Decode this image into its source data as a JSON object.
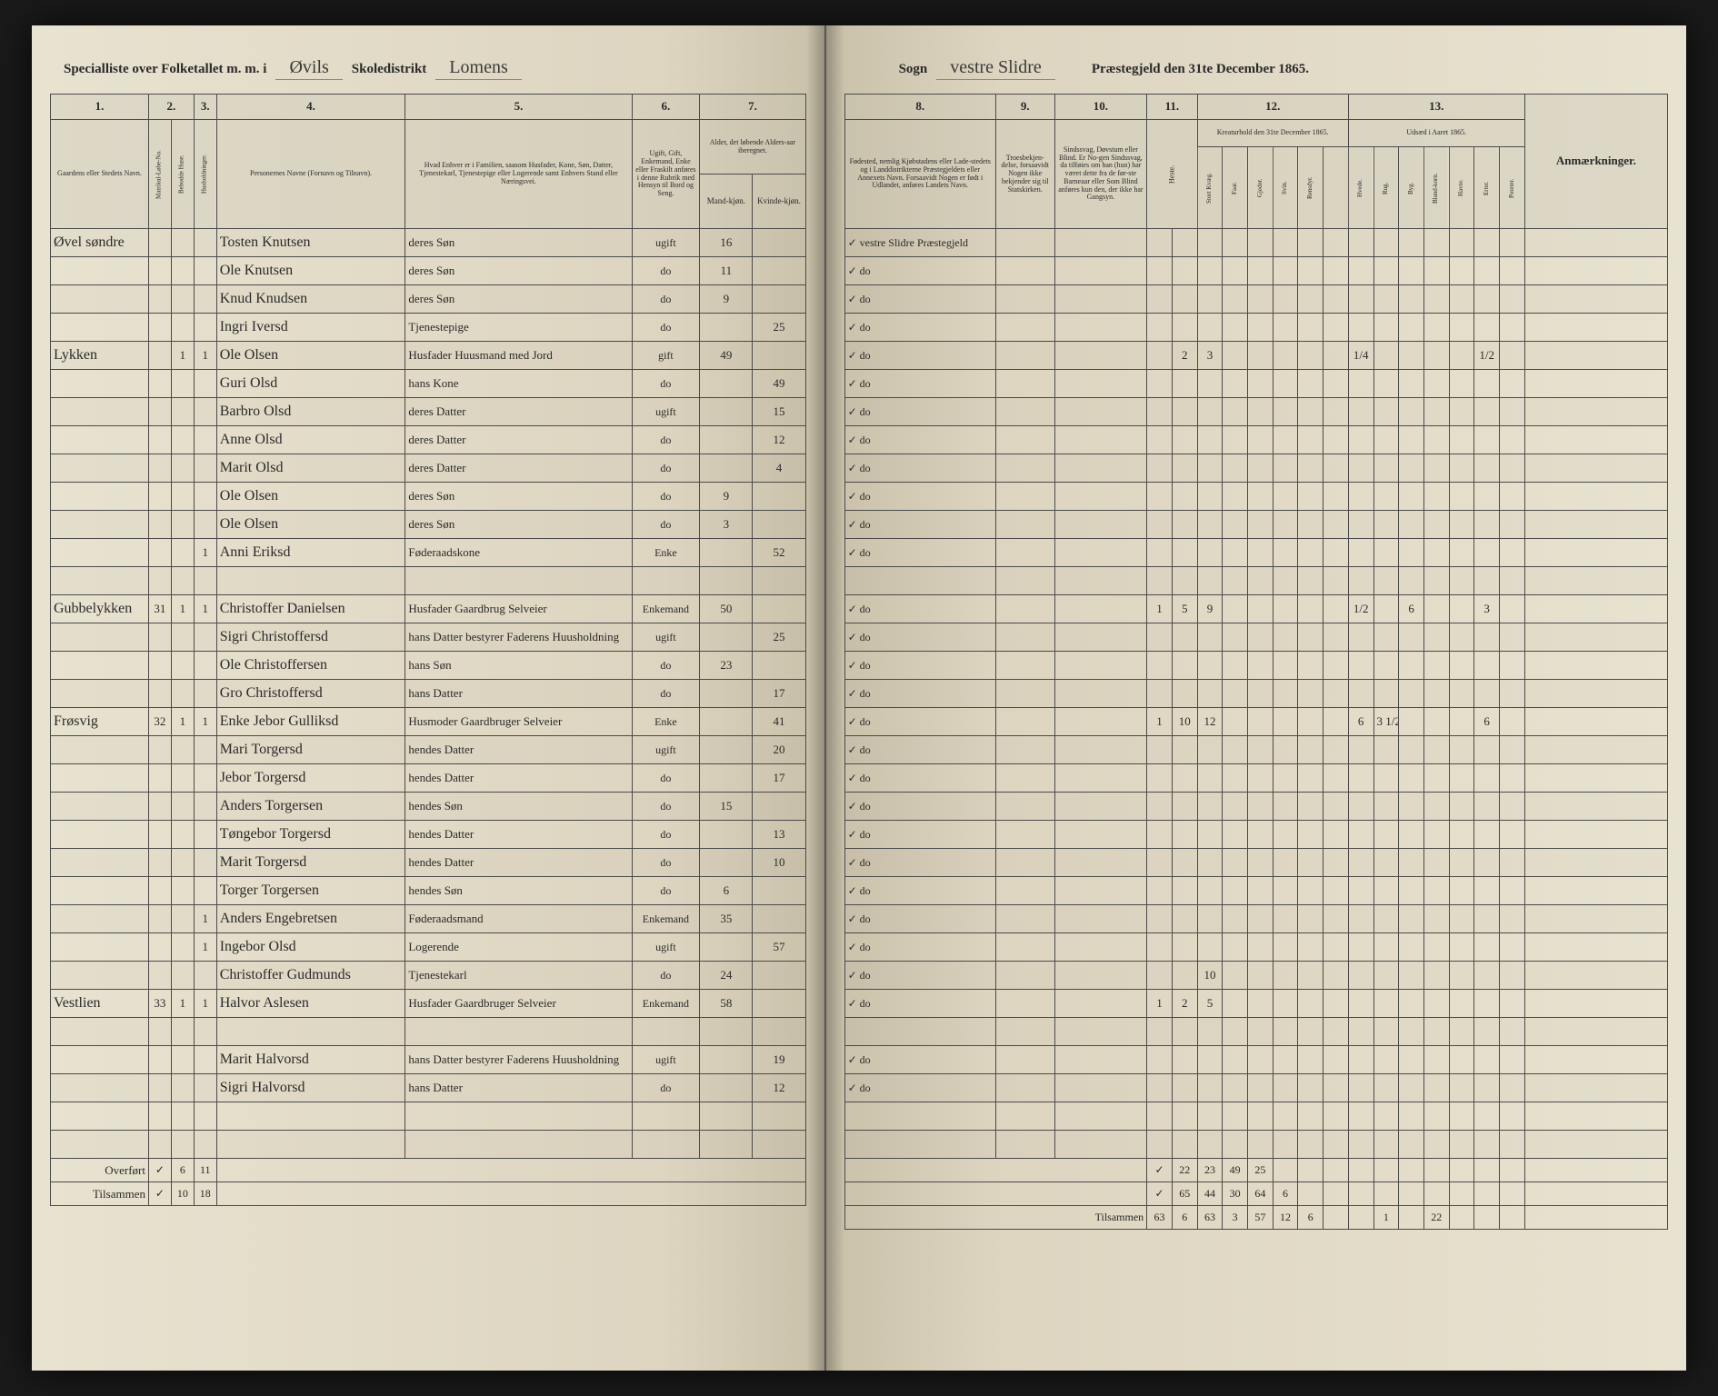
{
  "header": {
    "left_printed_1": "Specialliste over Folketallet m. m. i",
    "left_written_1": "Øvils",
    "left_printed_2": "Skoledistrikt",
    "left_written_2": "Lomens",
    "right_printed_1": "Sogn",
    "right_written_1": "vestre Slidre",
    "right_printed_2": "Præstegjeld den 31te December 1865."
  },
  "left_columns": {
    "c1": "1.",
    "c2": "2.",
    "c3": "3.",
    "c4": "4.",
    "c5": "5.",
    "c6": "6.",
    "c7": "7.",
    "d1": "Gaardens eller Stedets Navn.",
    "d2a": "Matrikul-Løbe-No.",
    "d2b": "Bebodde Huse.",
    "d2c": "Husholdninger.",
    "d4": "Personernes Navne (Fornavn og Tilnavn).",
    "d5": "Hvad Enhver er i Familien, saasom Husfader, Kone, Søn, Datter, Tjenestekarl, Tjenestepige eller Logerende samt Enhvers Stand eller Næringsvei.",
    "d6": "Ugift, Gift, Enkemand, Enke eller Fraskilt anføres i denne Rubrik med Hensyn til Bord og Seng.",
    "d7": "Alder, det løbende Alders-aar iberegnet.",
    "d7a": "Mand-kjøn.",
    "d7b": "Kvinde-kjøn."
  },
  "right_columns": {
    "c8": "8.",
    "c9": "9.",
    "c10": "10.",
    "c11": "11.",
    "c12": "12.",
    "c13": "13.",
    "d8": "Fødested, nemlig Kjøbstadens eller Lade-stedets og i Landdistrikterne Præstegjeldets eller Annexets Navn. Forsaavidt Nogen er født i Udlandet, anføres Landets Navn.",
    "d9": "Troesbekjen-delse, forsaavidt Nogen ikke bekjender sig til Statskirken.",
    "d10": "Sindssvag, Døvstum eller Blind. Er No-gen Sindssvag, da tilføies om han (hun) har været dette fra de før-ste Barneaar eller Som Blind anføres kun den, der ikke har Gangsyn.",
    "d11": "Heste.",
    "d12": "Kreaturhold den 31te December 1865.",
    "d12a": "Stort Kvæg.",
    "d12b": "Faar.",
    "d12c": "Gjeder.",
    "d12d": "Svin.",
    "d12e": "Rensdyr.",
    "d13": "Udsæd i Aaret 1865.",
    "d13a": "Hvede.",
    "d13b": "Rug.",
    "d13c": "Byg.",
    "d13d": "Bland-korn.",
    "d13e": "Havre.",
    "d13f": "Erter.",
    "d13g": "Poteter.",
    "d14": "Anmærkninger."
  },
  "rows": [
    {
      "place": "Øvel søndre",
      "mn": "",
      "h": "",
      "hh": "",
      "name": "Tosten Knutsen",
      "rel": "deres Søn",
      "civ": "ugift",
      "m": "16",
      "f": "",
      "birth": "vestre Slidre Præstegjeld",
      "rc": [
        "",
        "",
        "",
        "",
        "",
        "",
        "",
        "",
        "",
        "",
        "",
        "",
        "",
        ""
      ]
    },
    {
      "place": "",
      "mn": "",
      "h": "",
      "hh": "",
      "name": "Ole Knutsen",
      "rel": "deres Søn",
      "civ": "do",
      "m": "11",
      "f": "",
      "birth": "do",
      "rc": [
        "",
        "",
        "",
        "",
        "",
        "",
        "",
        "",
        "",
        "",
        "",
        "",
        "",
        ""
      ]
    },
    {
      "place": "",
      "mn": "",
      "h": "",
      "hh": "",
      "name": "Knud Knudsen",
      "rel": "deres Søn",
      "civ": "do",
      "m": "9",
      "f": "",
      "birth": "do",
      "rc": [
        "",
        "",
        "",
        "",
        "",
        "",
        "",
        "",
        "",
        "",
        "",
        "",
        "",
        ""
      ]
    },
    {
      "place": "",
      "mn": "",
      "h": "",
      "hh": "",
      "name": "Ingri Iversd",
      "rel": "Tjenestepige",
      "civ": "do",
      "m": "",
      "f": "25",
      "birth": "do",
      "rc": [
        "",
        "",
        "",
        "",
        "",
        "",
        "",
        "",
        "",
        "",
        "",
        "",
        "",
        ""
      ]
    },
    {
      "place": "Lykken",
      "mn": "",
      "h": "1",
      "hh": "1",
      "name": "Ole Olsen",
      "rel": "Husfader Huusmand med Jord",
      "civ": "gift",
      "m": "49",
      "f": "",
      "birth": "do",
      "rc": [
        "",
        "2",
        "3",
        "",
        "",
        "",
        "",
        "",
        "1/4",
        "",
        "",
        "",
        "",
        "1/2"
      ]
    },
    {
      "place": "",
      "mn": "",
      "h": "",
      "hh": "",
      "name": "Guri Olsd",
      "rel": "hans Kone",
      "civ": "do",
      "m": "",
      "f": "49",
      "birth": "do",
      "rc": [
        "",
        "",
        "",
        "",
        "",
        "",
        "",
        "",
        "",
        "",
        "",
        "",
        "",
        ""
      ]
    },
    {
      "place": "",
      "mn": "",
      "h": "",
      "hh": "",
      "name": "Barbro Olsd",
      "rel": "deres Datter",
      "civ": "ugift",
      "m": "",
      "f": "15",
      "birth": "do",
      "rc": [
        "",
        "",
        "",
        "",
        "",
        "",
        "",
        "",
        "",
        "",
        "",
        "",
        "",
        ""
      ]
    },
    {
      "place": "",
      "mn": "",
      "h": "",
      "hh": "",
      "name": "Anne Olsd",
      "rel": "deres Datter",
      "civ": "do",
      "m": "",
      "f": "12",
      "birth": "do",
      "rc": [
        "",
        "",
        "",
        "",
        "",
        "",
        "",
        "",
        "",
        "",
        "",
        "",
        "",
        ""
      ]
    },
    {
      "place": "",
      "mn": "",
      "h": "",
      "hh": "",
      "name": "Marit Olsd",
      "rel": "deres Datter",
      "civ": "do",
      "m": "",
      "f": "4",
      "birth": "do",
      "rc": [
        "",
        "",
        "",
        "",
        "",
        "",
        "",
        "",
        "",
        "",
        "",
        "",
        "",
        ""
      ]
    },
    {
      "place": "",
      "mn": "",
      "h": "",
      "hh": "",
      "name": "Ole Olsen",
      "rel": "deres Søn",
      "civ": "do",
      "m": "9",
      "f": "",
      "birth": "do",
      "rc": [
        "",
        "",
        "",
        "",
        "",
        "",
        "",
        "",
        "",
        "",
        "",
        "",
        "",
        ""
      ]
    },
    {
      "place": "",
      "mn": "",
      "h": "",
      "hh": "",
      "name": "Ole Olsen",
      "rel": "deres Søn",
      "civ": "do",
      "m": "3",
      "f": "",
      "birth": "do",
      "rc": [
        "",
        "",
        "",
        "",
        "",
        "",
        "",
        "",
        "",
        "",
        "",
        "",
        "",
        ""
      ]
    },
    {
      "place": "",
      "mn": "",
      "h": "",
      "hh": "1",
      "name": "Anni Eriksd",
      "rel": "Føderaadskone",
      "civ": "Enke",
      "m": "",
      "f": "52",
      "birth": "do",
      "rc": [
        "",
        "",
        "",
        "",
        "",
        "",
        "",
        "",
        "",
        "",
        "",
        "",
        "",
        ""
      ]
    },
    {
      "place": "",
      "mn": "",
      "h": "",
      "hh": "",
      "name": "",
      "rel": "",
      "civ": "",
      "m": "",
      "f": "",
      "birth": "",
      "rc": [
        "",
        "",
        "",
        "",
        "",
        "",
        "",
        "",
        "",
        "",
        "",
        "",
        "",
        ""
      ]
    },
    {
      "place": "Gubbelykken",
      "mn": "31",
      "h": "1",
      "hh": "1",
      "name": "Christoffer Danielsen",
      "rel": "Husfader Gaardbrug Selveier",
      "civ": "Enkemand",
      "m": "50",
      "f": "",
      "birth": "do",
      "rc": [
        "1",
        "5",
        "9",
        "",
        "",
        "",
        "",
        "",
        "1/2",
        "",
        "6",
        "",
        "",
        "3"
      ]
    },
    {
      "place": "",
      "mn": "",
      "h": "",
      "hh": "",
      "name": "Sigri Christoffersd",
      "rel": "hans Datter bestyrer Faderens Huusholdning",
      "civ": "ugift",
      "m": "",
      "f": "25",
      "birth": "do",
      "rc": [
        "",
        "",
        "",
        "",
        "",
        "",
        "",
        "",
        "",
        "",
        "",
        "",
        "",
        ""
      ]
    },
    {
      "place": "",
      "mn": "",
      "h": "",
      "hh": "",
      "name": "Ole Christoffersen",
      "rel": "hans Søn",
      "civ": "do",
      "m": "23",
      "f": "",
      "birth": "do",
      "rc": [
        "",
        "",
        "",
        "",
        "",
        "",
        "",
        "",
        "",
        "",
        "",
        "",
        "",
        ""
      ]
    },
    {
      "place": "",
      "mn": "",
      "h": "",
      "hh": "",
      "name": "Gro Christoffersd",
      "rel": "hans Datter",
      "civ": "do",
      "m": "",
      "f": "17",
      "birth": "do",
      "rc": [
        "",
        "",
        "",
        "",
        "",
        "",
        "",
        "",
        "",
        "",
        "",
        "",
        "",
        ""
      ]
    },
    {
      "place": "Frøsvig",
      "mn": "32",
      "h": "1",
      "hh": "1",
      "name": "Enke Jebor Gulliksd",
      "rel": "Husmoder Gaardbruger Selveier",
      "civ": "Enke",
      "m": "",
      "f": "41",
      "birth": "do",
      "rc": [
        "1",
        "10",
        "12",
        "",
        "",
        "",
        "",
        "",
        "6",
        "3 1/2",
        "",
        "",
        "",
        "6"
      ]
    },
    {
      "place": "",
      "mn": "",
      "h": "",
      "hh": "",
      "name": "Mari Torgersd",
      "rel": "hendes Datter",
      "civ": "ugift",
      "m": "",
      "f": "20",
      "birth": "do",
      "rc": [
        "",
        "",
        "",
        "",
        "",
        "",
        "",
        "",
        "",
        "",
        "",
        "",
        "",
        ""
      ]
    },
    {
      "place": "",
      "mn": "",
      "h": "",
      "hh": "",
      "name": "Jebor Torgersd",
      "rel": "hendes Datter",
      "civ": "do",
      "m": "",
      "f": "17",
      "birth": "do",
      "rc": [
        "",
        "",
        "",
        "",
        "",
        "",
        "",
        "",
        "",
        "",
        "",
        "",
        "",
        ""
      ]
    },
    {
      "place": "",
      "mn": "",
      "h": "",
      "hh": "",
      "name": "Anders Torgersen",
      "rel": "hendes Søn",
      "civ": "do",
      "m": "15",
      "f": "",
      "birth": "do",
      "rc": [
        "",
        "",
        "",
        "",
        "",
        "",
        "",
        "",
        "",
        "",
        "",
        "",
        "",
        ""
      ]
    },
    {
      "place": "",
      "mn": "",
      "h": "",
      "hh": "",
      "name": "Tøngebor Torgersd",
      "rel": "hendes Datter",
      "civ": "do",
      "m": "",
      "f": "13",
      "birth": "do",
      "rc": [
        "",
        "",
        "",
        "",
        "",
        "",
        "",
        "",
        "",
        "",
        "",
        "",
        "",
        ""
      ]
    },
    {
      "place": "",
      "mn": "",
      "h": "",
      "hh": "",
      "name": "Marit Torgersd",
      "rel": "hendes Datter",
      "civ": "do",
      "m": "",
      "f": "10",
      "birth": "do",
      "rc": [
        "",
        "",
        "",
        "",
        "",
        "",
        "",
        "",
        "",
        "",
        "",
        "",
        "",
        ""
      ]
    },
    {
      "place": "",
      "mn": "",
      "h": "",
      "hh": "",
      "name": "Torger Torgersen",
      "rel": "hendes Søn",
      "civ": "do",
      "m": "6",
      "f": "",
      "birth": "do",
      "rc": [
        "",
        "",
        "",
        "",
        "",
        "",
        "",
        "",
        "",
        "",
        "",
        "",
        "",
        ""
      ]
    },
    {
      "place": "",
      "mn": "",
      "h": "",
      "hh": "1",
      "name": "Anders Engebretsen",
      "rel": "Føderaadsmand",
      "civ": "Enkemand",
      "m": "35",
      "f": "",
      "birth": "do",
      "rc": [
        "",
        "",
        "",
        "",
        "",
        "",
        "",
        "",
        "",
        "",
        "",
        "",
        "",
        ""
      ]
    },
    {
      "place": "",
      "mn": "",
      "h": "",
      "hh": "1",
      "name": "Ingebor Olsd",
      "rel": "Logerende",
      "civ": "ugift",
      "m": "",
      "f": "57",
      "birth": "do",
      "rc": [
        "",
        "",
        "",
        "",
        "",
        "",
        "",
        "",
        "",
        "",
        "",
        "",
        "",
        ""
      ]
    },
    {
      "place": "",
      "mn": "",
      "h": "",
      "hh": "",
      "name": "Christoffer Gudmunds",
      "rel": "Tjenestekarl",
      "civ": "do",
      "m": "24",
      "f": "",
      "birth": "do",
      "rc": [
        "",
        "",
        "10",
        "",
        "",
        "",
        "",
        "",
        "",
        "",
        "",
        "",
        "",
        ""
      ]
    },
    {
      "place": "Vestlien",
      "mn": "33",
      "h": "1",
      "hh": "1",
      "name": "Halvor Aslesen",
      "rel": "Husfader Gaardbruger Selveier",
      "civ": "Enkemand",
      "m": "58",
      "f": "",
      "birth": "do",
      "rc": [
        "1",
        "2",
        "5",
        "",
        "",
        "",
        "",
        "",
        "",
        "",
        "",
        "",
        "",
        ""
      ]
    },
    {
      "place": "",
      "mn": "",
      "h": "",
      "hh": "",
      "name": "",
      "rel": "",
      "civ": "",
      "m": "",
      "f": "",
      "birth": "",
      "rc": [
        "",
        "",
        "",
        "",
        "",
        "",
        "",
        "",
        "",
        "",
        "",
        "",
        "",
        ""
      ]
    },
    {
      "place": "",
      "mn": "",
      "h": "",
      "hh": "",
      "name": "Marit Halvorsd",
      "rel": "hans Datter bestyrer Faderens Huusholdning",
      "civ": "ugift",
      "m": "",
      "f": "19",
      "birth": "do",
      "rc": [
        "",
        "",
        "",
        "",
        "",
        "",
        "",
        "",
        "",
        "",
        "",
        "",
        "",
        ""
      ]
    },
    {
      "place": "",
      "mn": "",
      "h": "",
      "hh": "",
      "name": "Sigri Halvorsd",
      "rel": "hans Datter",
      "civ": "do",
      "m": "",
      "f": "12",
      "birth": "do",
      "rc": [
        "",
        "",
        "",
        "",
        "",
        "",
        "",
        "",
        "",
        "",
        "",
        "",
        "",
        ""
      ]
    },
    {
      "place": "",
      "mn": "",
      "h": "",
      "hh": "",
      "name": "",
      "rel": "",
      "civ": "",
      "m": "",
      "f": "",
      "birth": "",
      "rc": [
        "",
        "",
        "",
        "",
        "",
        "",
        "",
        "",
        "",
        "",
        "",
        "",
        "",
        ""
      ]
    },
    {
      "place": "",
      "mn": "",
      "h": "",
      "hh": "",
      "name": "",
      "rel": "",
      "civ": "",
      "m": "",
      "f": "",
      "birth": "",
      "rc": [
        "",
        "",
        "",
        "",
        "",
        "",
        "",
        "",
        "",
        "",
        "",
        "",
        "",
        ""
      ]
    }
  ],
  "footer": {
    "left_label_1": "Overført",
    "left_label_2": "Tilsammen",
    "left_v1a": "✓",
    "left_v1b": "6",
    "left_v1c": "11",
    "left_v2a": "✓",
    "left_v2b": "10",
    "left_v2c": "18",
    "right_label": "Tilsammen",
    "right_v1": [
      "✓",
      "22",
      "23",
      "49",
      "25",
      "",
      "",
      "",
      "",
      "",
      "",
      "",
      "",
      ""
    ],
    "right_v2": [
      "✓",
      "65",
      "44",
      "30",
      "64",
      "6",
      "",
      "",
      "",
      "",
      "",
      "",
      "",
      ""
    ],
    "right_sum": [
      "63",
      "6",
      "63",
      "3",
      "57",
      "12",
      "6",
      "",
      "",
      "1",
      "",
      "22",
      "",
      ""
    ]
  }
}
